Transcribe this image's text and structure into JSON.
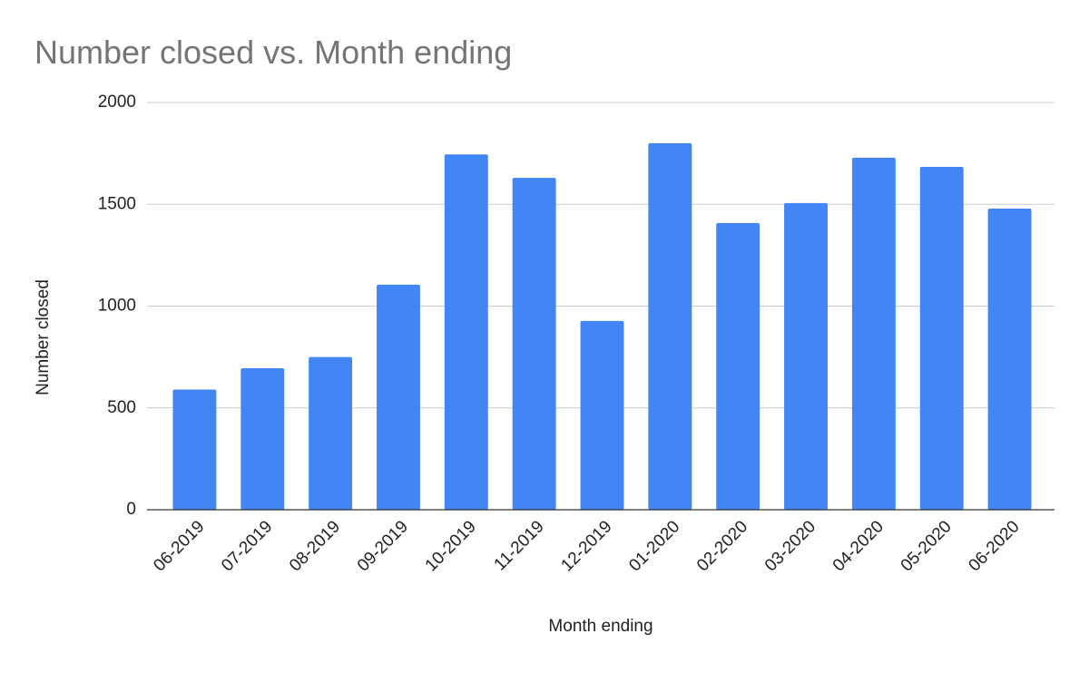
{
  "chart_data": {
    "type": "bar",
    "title": "Number closed vs. Month ending",
    "x_label": "Month ending",
    "y_label": "Number closed",
    "categories": [
      "06-2019",
      "07-2019",
      "08-2019",
      "09-2019",
      "10-2019",
      "11-2019",
      "12-2019",
      "01-2020",
      "02-2020",
      "03-2020",
      "04-2020",
      "05-2020",
      "06-2020"
    ],
    "values": [
      590,
      695,
      750,
      1105,
      1745,
      1630,
      927,
      1800,
      1408,
      1506,
      1729,
      1684,
      1479
    ],
    "color": "#4285f4",
    "ylim": [
      0,
      2000
    ],
    "yticks": [
      0,
      500,
      1000,
      1500,
      2000
    ],
    "grid": true
  }
}
